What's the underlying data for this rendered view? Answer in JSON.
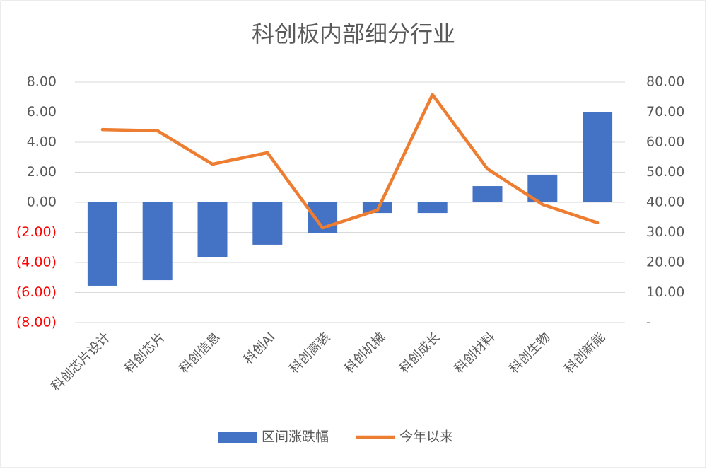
{
  "chart_data": {
    "type": "bar-line",
    "title": "科创板内部细分行业",
    "categories": [
      "科创芯片设计",
      "科创芯片",
      "科创信息",
      "科创AI",
      "科创高装",
      "科创机械",
      "科创成长",
      "科创材料",
      "科创生物",
      "科创新能"
    ],
    "series": [
      {
        "name": "区间涨跌幅",
        "type": "bar",
        "color": "#4472c4",
        "values": [
          -5.55,
          -5.18,
          -3.67,
          -2.82,
          -2.07,
          -0.71,
          -0.71,
          1.08,
          1.84,
          6.02
        ]
      },
      {
        "name": "今年以来",
        "type": "line",
        "axis": "y2",
        "color": "#ed7d31",
        "values": [
          64.2,
          63.8,
          52.7,
          56.5,
          31.5,
          37.4,
          75.8,
          51.1,
          39.3,
          33.2
        ]
      }
    ],
    "ylim": [
      -8,
      8
    ],
    "yticks": [
      {
        "value": -8,
        "label": "(8.00)"
      },
      {
        "value": -6,
        "label": "(6.00)"
      },
      {
        "value": -4,
        "label": "(4.00)"
      },
      {
        "value": -2,
        "label": "(2.00)"
      },
      {
        "value": 0,
        "label": "0.00"
      },
      {
        "value": 2,
        "label": "2.00"
      },
      {
        "value": 4,
        "label": "4.00"
      },
      {
        "value": 6,
        "label": "6.00"
      },
      {
        "value": 8,
        "label": "8.00"
      }
    ],
    "y2lim": [
      0,
      80
    ],
    "y2ticks": [
      {
        "value": 0,
        "label": "-"
      },
      {
        "value": 10,
        "label": "10.00"
      },
      {
        "value": 20,
        "label": "20.00"
      },
      {
        "value": 30,
        "label": "30.00"
      },
      {
        "value": 40,
        "label": "40.00"
      },
      {
        "value": 50,
        "label": "50.00"
      },
      {
        "value": 60,
        "label": "60.00"
      },
      {
        "value": 70,
        "label": "70.00"
      },
      {
        "value": 80,
        "label": "80.00"
      }
    ],
    "negative_tick_color": "#ff0000",
    "grid": true,
    "legend": "bottom"
  }
}
